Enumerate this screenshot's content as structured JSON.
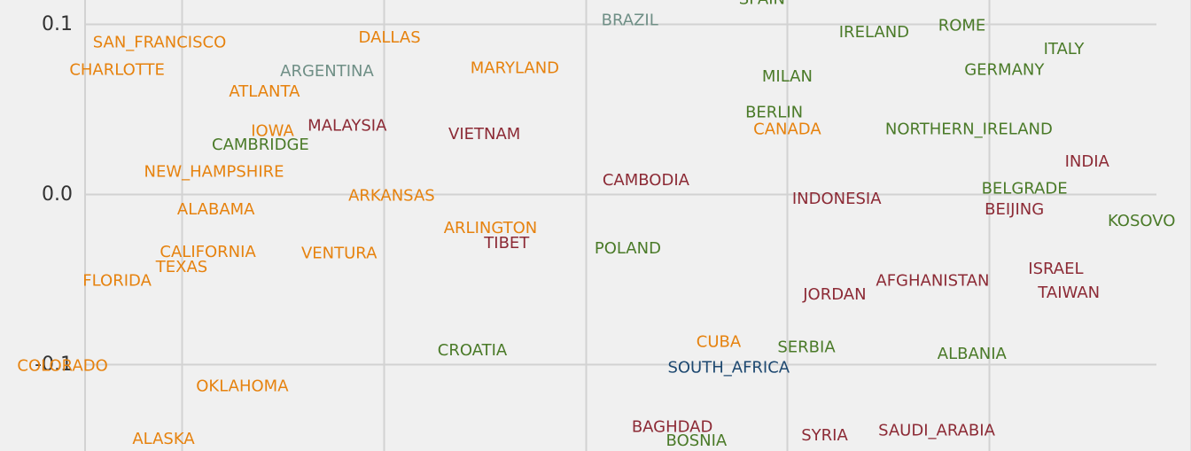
{
  "chart_data": {
    "type": "scatter",
    "title": "",
    "xlabel": "",
    "ylabel": "",
    "grid": true,
    "xlim": [
      -0.29,
      0.3
    ],
    "ylim": [
      -0.151,
      0.114
    ],
    "yticks": [
      {
        "value": 0.1,
        "label": "0.1"
      },
      {
        "value": 0.0,
        "label": "0.0"
      },
      {
        "value": -0.1,
        "label": "-0.1"
      }
    ],
    "xgrid": [
      -0.2,
      -0.1,
      0.0,
      0.1,
      0.2,
      0.3
    ],
    "groups": {
      "us": "#e6820e",
      "south_america": "#6f8f86",
      "europe": "#4a7a28",
      "asia": "#8c2a35",
      "africa": "#1d4870"
    },
    "points": [
      {
        "label": "SPAIN",
        "x": 0.0875,
        "y": 0.1145,
        "group": "europe"
      },
      {
        "label": "BRAZIL",
        "x": 0.022,
        "y": 0.102,
        "group": "south_america"
      },
      {
        "label": "IRELAND",
        "x": 0.143,
        "y": 0.095,
        "group": "europe"
      },
      {
        "label": "ROME",
        "x": 0.1865,
        "y": 0.099,
        "group": "europe"
      },
      {
        "label": "SAN_FRANCISCO",
        "x": -0.211,
        "y": 0.089,
        "group": "us"
      },
      {
        "label": "DALLAS",
        "x": -0.097,
        "y": 0.092,
        "group": "us"
      },
      {
        "label": "ITALY",
        "x": 0.237,
        "y": 0.085,
        "group": "europe"
      },
      {
        "label": "CHARLOTTE",
        "x": -0.232,
        "y": 0.073,
        "group": "us"
      },
      {
        "label": "ARGENTINA",
        "x": -0.128,
        "y": 0.072,
        "group": "south_america"
      },
      {
        "label": "MARYLAND",
        "x": -0.035,
        "y": 0.074,
        "group": "us"
      },
      {
        "label": "GERMANY",
        "x": 0.2075,
        "y": 0.073,
        "group": "europe"
      },
      {
        "label": "MILAN",
        "x": 0.1,
        "y": 0.069,
        "group": "europe"
      },
      {
        "label": "ATLANTA",
        "x": -0.159,
        "y": 0.06,
        "group": "us"
      },
      {
        "label": "BERLIN",
        "x": 0.0935,
        "y": 0.048,
        "group": "europe"
      },
      {
        "label": "MALAYSIA",
        "x": -0.118,
        "y": 0.04,
        "group": "asia"
      },
      {
        "label": "IOWA",
        "x": -0.155,
        "y": 0.037,
        "group": "us"
      },
      {
        "label": "CANADA",
        "x": 0.1,
        "y": 0.038,
        "group": "us"
      },
      {
        "label": "NORTHERN_IRELAND",
        "x": 0.19,
        "y": 0.038,
        "group": "europe"
      },
      {
        "label": "VIETNAM",
        "x": -0.05,
        "y": 0.035,
        "group": "asia"
      },
      {
        "label": "CAMBRIDGE",
        "x": -0.161,
        "y": 0.029,
        "group": "europe"
      },
      {
        "label": "INDIA",
        "x": 0.2485,
        "y": 0.019,
        "group": "asia"
      },
      {
        "label": "NEW_HAMPSHIRE",
        "x": -0.184,
        "y": 0.013,
        "group": "us"
      },
      {
        "label": "CAMBODIA",
        "x": 0.03,
        "y": 0.008,
        "group": "asia"
      },
      {
        "label": "BELGRADE",
        "x": 0.2175,
        "y": 0.003,
        "group": "europe"
      },
      {
        "label": "ARKANSAS",
        "x": -0.096,
        "y": -0.001,
        "group": "us"
      },
      {
        "label": "INDONESIA",
        "x": 0.1245,
        "y": -0.003,
        "group": "asia"
      },
      {
        "label": "ALABAMA",
        "x": -0.183,
        "y": -0.009,
        "group": "us"
      },
      {
        "label": "BEIJING",
        "x": 0.2125,
        "y": -0.009,
        "group": "asia"
      },
      {
        "label": "KOSOVO",
        "x": 0.2755,
        "y": -0.016,
        "group": "europe"
      },
      {
        "label": "ARLINGTON",
        "x": -0.047,
        "y": -0.02,
        "group": "us"
      },
      {
        "label": "TIBET",
        "x": -0.039,
        "y": -0.029,
        "group": "asia"
      },
      {
        "label": "POLAND",
        "x": 0.021,
        "y": -0.032,
        "group": "europe"
      },
      {
        "label": "CALIFORNIA",
        "x": -0.187,
        "y": -0.034,
        "group": "us"
      },
      {
        "label": "VENTURA",
        "x": -0.122,
        "y": -0.035,
        "group": "us"
      },
      {
        "label": "TEXAS",
        "x": -0.2,
        "y": -0.043,
        "group": "us"
      },
      {
        "label": "ISRAEL",
        "x": 0.233,
        "y": -0.044,
        "group": "asia"
      },
      {
        "label": "FLORIDA",
        "x": -0.232,
        "y": -0.051,
        "group": "us"
      },
      {
        "label": "AFGHANISTAN",
        "x": 0.172,
        "y": -0.051,
        "group": "asia"
      },
      {
        "label": "TAIWAN",
        "x": 0.2395,
        "y": -0.058,
        "group": "asia"
      },
      {
        "label": "JORDAN",
        "x": 0.1235,
        "y": -0.059,
        "group": "asia"
      },
      {
        "label": "CUBA",
        "x": 0.066,
        "y": -0.087,
        "group": "us"
      },
      {
        "label": "SERBIA",
        "x": 0.1095,
        "y": -0.09,
        "group": "europe"
      },
      {
        "label": "CROATIA",
        "x": -0.056,
        "y": -0.092,
        "group": "europe"
      },
      {
        "label": "ALBANIA",
        "x": 0.1915,
        "y": -0.094,
        "group": "europe"
      },
      {
        "label": "COLORADO",
        "x": -0.259,
        "y": -0.101,
        "group": "us"
      },
      {
        "label": "SOUTH_AFRICA",
        "x": 0.071,
        "y": -0.102,
        "group": "africa"
      },
      {
        "label": "OKLAHOMA",
        "x": -0.17,
        "y": -0.113,
        "group": "us"
      },
      {
        "label": "BAGHDAD",
        "x": 0.043,
        "y": -0.137,
        "group": "asia"
      },
      {
        "label": "SAUDI_ARABIA",
        "x": 0.174,
        "y": -0.139,
        "group": "asia"
      },
      {
        "label": "SYRIA",
        "x": 0.1185,
        "y": -0.142,
        "group": "asia"
      },
      {
        "label": "ALASKA",
        "x": -0.209,
        "y": -0.144,
        "group": "us"
      },
      {
        "label": "BOSNIA",
        "x": 0.055,
        "y": -0.145,
        "group": "europe"
      }
    ]
  }
}
